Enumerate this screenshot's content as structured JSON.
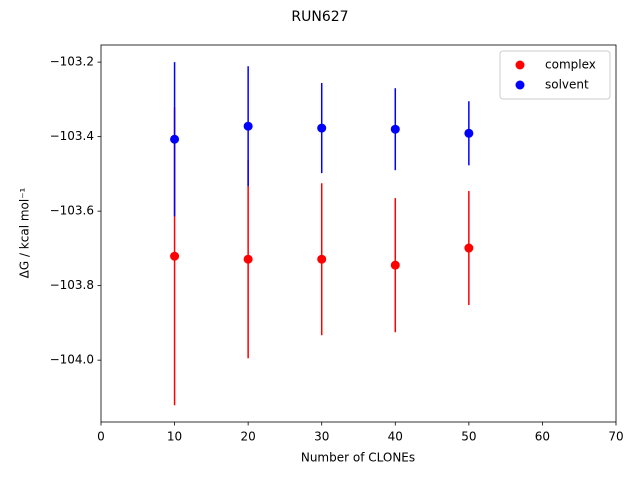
{
  "chart_data": {
    "type": "errorbar-scatter",
    "title": "RUN627",
    "x_label": "Number of CLONEs",
    "y_label": "ΔG / kcal mol⁻¹",
    "xlim": [
      0,
      70
    ],
    "xticks": [
      0,
      10,
      20,
      30,
      40,
      50,
      60,
      70
    ],
    "ylim": [
      -104.166,
      -103.154
    ],
    "yticks": [
      {
        "value": -104.0,
        "label": "−104.0"
      },
      {
        "value": -103.8,
        "label": "−103.8"
      },
      {
        "value": -103.6,
        "label": "−103.6"
      },
      {
        "value": -103.4,
        "label": "−103.4"
      },
      {
        "value": -103.2,
        "label": "−103.2"
      }
    ],
    "legend": "upper right",
    "x": [
      10,
      20,
      30,
      40,
      50
    ],
    "series": [
      {
        "name": "complex",
        "color": "#ff0000",
        "values": [
          -103.721,
          -103.729,
          -103.729,
          -103.745,
          -103.699
        ],
        "errors": [
          0.4,
          0.266,
          0.204,
          0.18,
          0.153
        ]
      },
      {
        "name": "solvent",
        "color": "#0000ff",
        "values": [
          -103.407,
          -103.372,
          -103.377,
          -103.38,
          -103.391
        ],
        "errors": [
          0.207,
          0.161,
          0.121,
          0.11,
          0.086
        ]
      }
    ]
  }
}
